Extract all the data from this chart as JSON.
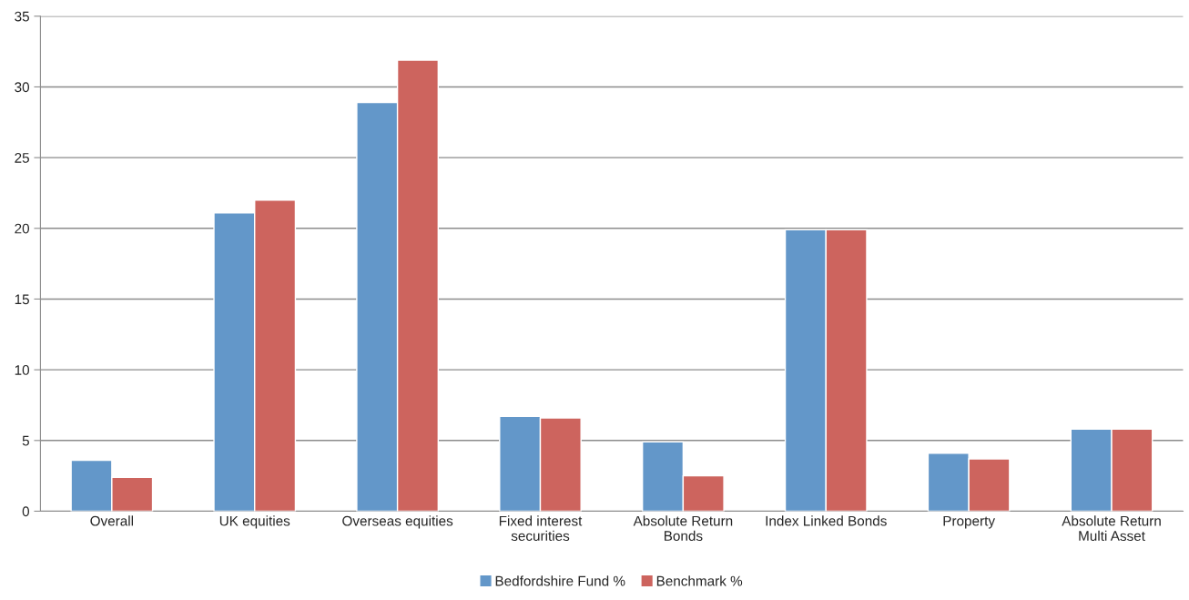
{
  "chart_data": {
    "type": "bar",
    "categories": [
      "Overall",
      "UK equities",
      "Overseas equities",
      "Fixed interest\nsecurities",
      "Absolute Return\nBonds",
      "Index Linked Bonds",
      "Property",
      "Absolute Return\nMulti Asset"
    ],
    "series": [
      {
        "name": "Bedfordshire Fund %",
        "color": "#6397c9",
        "values": [
          3.6,
          21.1,
          28.9,
          6.7,
          4.9,
          19.9,
          4.1,
          5.8
        ]
      },
      {
        "name": "Benchmark %",
        "color": "#cd645e",
        "values": [
          2.4,
          22.0,
          31.9,
          6.6,
          2.5,
          19.9,
          3.7,
          5.8
        ]
      }
    ],
    "ylim": [
      0,
      35
    ],
    "yticks": [
      0,
      5,
      10,
      15,
      20,
      25,
      30,
      35
    ],
    "grid": "y",
    "legend": "bottom"
  }
}
